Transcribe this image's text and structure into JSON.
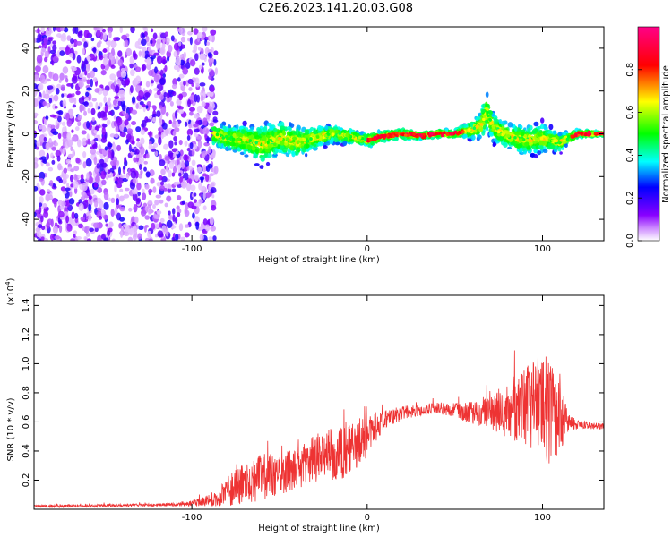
{
  "title": "C2E6.2023.141.20.03.G08",
  "chart_data": [
    {
      "type": "scatter",
      "name": "spectrogram",
      "xlabel": "Height of straight line (km)",
      "ylabel": "Frequency (Hz)",
      "xlim": [
        -190,
        135
      ],
      "ylim": [
        -50,
        50
      ],
      "x_ticks": [
        -100,
        0,
        100
      ],
      "y_ticks": [
        -40,
        -20,
        0,
        20,
        40
      ],
      "colorbar": {
        "label": "Normalized spectral amplitude",
        "range": [
          0,
          1
        ],
        "ticks": [
          "0.0",
          "0.2",
          "0.4",
          "0.6",
          "0.8"
        ],
        "colormap": [
          "#ffffff",
          "#8800ff",
          "#0000ff",
          "#00ffff",
          "#00ff00",
          "#ffff00",
          "#ff0000",
          "#ff00aa"
        ]
      },
      "trace": {
        "x": [
          -88,
          -80,
          -70,
          -60,
          -50,
          -40,
          -30,
          -20,
          -10,
          0,
          10,
          20,
          30,
          40,
          50,
          60,
          65,
          68,
          72,
          80,
          90,
          100,
          110,
          120,
          135
        ],
        "y": [
          0,
          -2,
          -3,
          -5,
          -2,
          -4,
          -2,
          0,
          -1,
          -3,
          -1,
          0,
          -1,
          0,
          0,
          2,
          4,
          10,
          3,
          -1,
          -3,
          -2,
          -4,
          0,
          0
        ],
        "spread": [
          8,
          9,
          10,
          14,
          12,
          11,
          8,
          6,
          5,
          4,
          3,
          3,
          2,
          2,
          2,
          6,
          10,
          14,
          10,
          9,
          10,
          10,
          6,
          2,
          1
        ]
      }
    },
    {
      "type": "line",
      "name": "snr",
      "xlabel": "Height of straight line (km)",
      "ylabel": "SNR (10 * v/v)",
      "yunit": "(x10",
      "yunit_exp": "4",
      "xlim": [
        -190,
        135
      ],
      "ylim": [
        0,
        1.47
      ],
      "x_ticks": [
        -100,
        0,
        100
      ],
      "y_ticks": [
        0.2,
        0.4,
        0.6,
        0.8,
        1.0,
        1.2,
        1.4
      ],
      "color": "#ee3333",
      "envelope": {
        "x": [
          -190,
          -120,
          -100,
          -90,
          -80,
          -70,
          -60,
          -50,
          -40,
          -30,
          -20,
          -10,
          0,
          10,
          20,
          30,
          40,
          50,
          60,
          70,
          80,
          90,
          100,
          105,
          110,
          115,
          120,
          135
        ],
        "mean": [
          0.02,
          0.03,
          0.04,
          0.06,
          0.12,
          0.18,
          0.22,
          0.24,
          0.28,
          0.35,
          0.38,
          0.42,
          0.5,
          0.62,
          0.66,
          0.68,
          0.7,
          0.68,
          0.66,
          0.68,
          0.68,
          0.7,
          0.7,
          0.68,
          0.62,
          0.6,
          0.58,
          0.57
        ],
        "amp": [
          0.01,
          0.01,
          0.02,
          0.04,
          0.1,
          0.14,
          0.16,
          0.14,
          0.14,
          0.16,
          0.18,
          0.2,
          0.14,
          0.06,
          0.05,
          0.04,
          0.04,
          0.05,
          0.08,
          0.12,
          0.2,
          0.28,
          0.34,
          0.4,
          0.24,
          0.06,
          0.03,
          0.02
        ]
      }
    }
  ]
}
